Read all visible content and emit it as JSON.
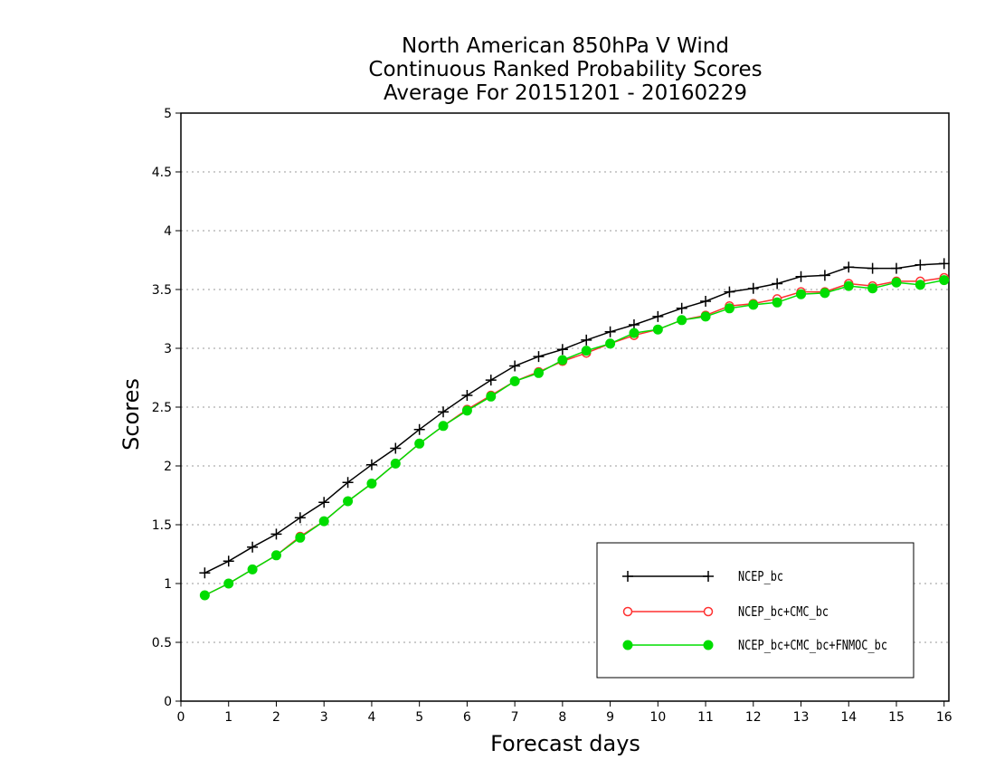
{
  "chart_data": {
    "type": "line",
    "title": [
      "North American 850hPa V Wind",
      "Continuous Ranked Probability Scores",
      "Average For 20151201 - 20160229"
    ],
    "xlabel": "Forecast days",
    "ylabel": "Scores",
    "xlim": [
      0,
      16.1
    ],
    "ylim": [
      0,
      5
    ],
    "xticks": [
      0,
      1,
      2,
      3,
      4,
      5,
      6,
      7,
      8,
      9,
      10,
      11,
      12,
      13,
      14,
      15,
      16
    ],
    "yticks": [
      0,
      0.5,
      1,
      1.5,
      2,
      2.5,
      3,
      3.5,
      4,
      4.5,
      5
    ],
    "ytick_labels": [
      "0",
      "0.5",
      "1",
      "1.5",
      "2",
      "2.5",
      "3",
      "3.5",
      "4",
      "4.5",
      "5"
    ],
    "grid": "horizontal dotted",
    "legend_position": "bottom-right",
    "x": [
      0.5,
      1,
      1.5,
      2,
      2.5,
      3,
      3.5,
      4,
      4.5,
      5,
      5.5,
      6,
      6.5,
      7,
      7.5,
      8,
      8.5,
      9,
      9.5,
      10,
      10.5,
      11,
      11.5,
      12,
      12.5,
      13,
      13.5,
      14,
      14.5,
      15,
      15.5,
      16
    ],
    "series": [
      {
        "name": "NCEP_bc",
        "color": "#000000",
        "marker": "plus",
        "values": [
          1.09,
          1.19,
          1.31,
          1.42,
          1.56,
          1.69,
          1.86,
          2.01,
          2.15,
          2.31,
          2.46,
          2.6,
          2.73,
          2.85,
          2.93,
          2.99,
          3.07,
          3.14,
          3.2,
          3.27,
          3.34,
          3.4,
          3.48,
          3.51,
          3.55,
          3.61,
          3.62,
          3.69,
          3.68,
          3.68,
          3.71,
          3.72
        ]
      },
      {
        "name": "NCEP_bc+CMC_bc",
        "color": "#ff3030",
        "marker": "open-circle",
        "values": [
          0.9,
          1.0,
          1.12,
          1.24,
          1.4,
          1.53,
          1.7,
          1.85,
          2.02,
          2.19,
          2.34,
          2.48,
          2.6,
          2.72,
          2.8,
          2.89,
          2.96,
          3.04,
          3.11,
          3.16,
          3.24,
          3.28,
          3.36,
          3.38,
          3.42,
          3.48,
          3.48,
          3.55,
          3.53,
          3.57,
          3.57,
          3.6
        ]
      },
      {
        "name": "NCEP_bc+CMC_bc+FNMOC_bc",
        "color": "#00dd00",
        "marker": "filled-circle",
        "values": [
          0.9,
          1.0,
          1.12,
          1.24,
          1.39,
          1.53,
          1.7,
          1.85,
          2.02,
          2.19,
          2.34,
          2.47,
          2.59,
          2.72,
          2.79,
          2.9,
          2.98,
          3.04,
          3.13,
          3.16,
          3.24,
          3.27,
          3.34,
          3.37,
          3.39,
          3.46,
          3.47,
          3.53,
          3.51,
          3.56,
          3.54,
          3.58
        ]
      }
    ]
  }
}
